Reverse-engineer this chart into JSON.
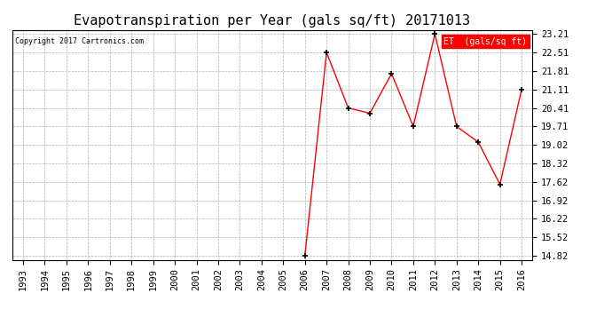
{
  "title": "Evapotranspiration per Year (gals sq/ft) 20171013",
  "copyright": "Copyright 2017 Cartronics.com",
  "legend_label": "ET  (gals/sq ft)",
  "years": [
    1993,
    1994,
    1995,
    1996,
    1997,
    1998,
    1999,
    2000,
    2001,
    2002,
    2003,
    2004,
    2005,
    2006,
    2007,
    2008,
    2009,
    2010,
    2011,
    2012,
    2013,
    2014,
    2015,
    2016
  ],
  "values": [
    null,
    null,
    null,
    null,
    null,
    null,
    null,
    null,
    null,
    null,
    null,
    null,
    null,
    14.82,
    22.51,
    20.41,
    20.21,
    21.71,
    19.71,
    23.21,
    19.71,
    19.12,
    17.52,
    21.11
  ],
  "ylim_min": 14.82,
  "ylim_max": 23.21,
  "yticks": [
    14.82,
    15.52,
    16.22,
    16.92,
    17.62,
    18.32,
    19.02,
    19.71,
    20.41,
    21.11,
    21.81,
    22.51,
    23.21
  ],
  "line_color": "#FF0000",
  "marker_color": "#000000",
  "grid_color": "#AAAAAA",
  "background_color": "#FFFFFF",
  "legend_bg": "#FF0000",
  "legend_text_color": "#FFFFFF",
  "title_fontsize": 11,
  "tick_fontsize": 7.5
}
